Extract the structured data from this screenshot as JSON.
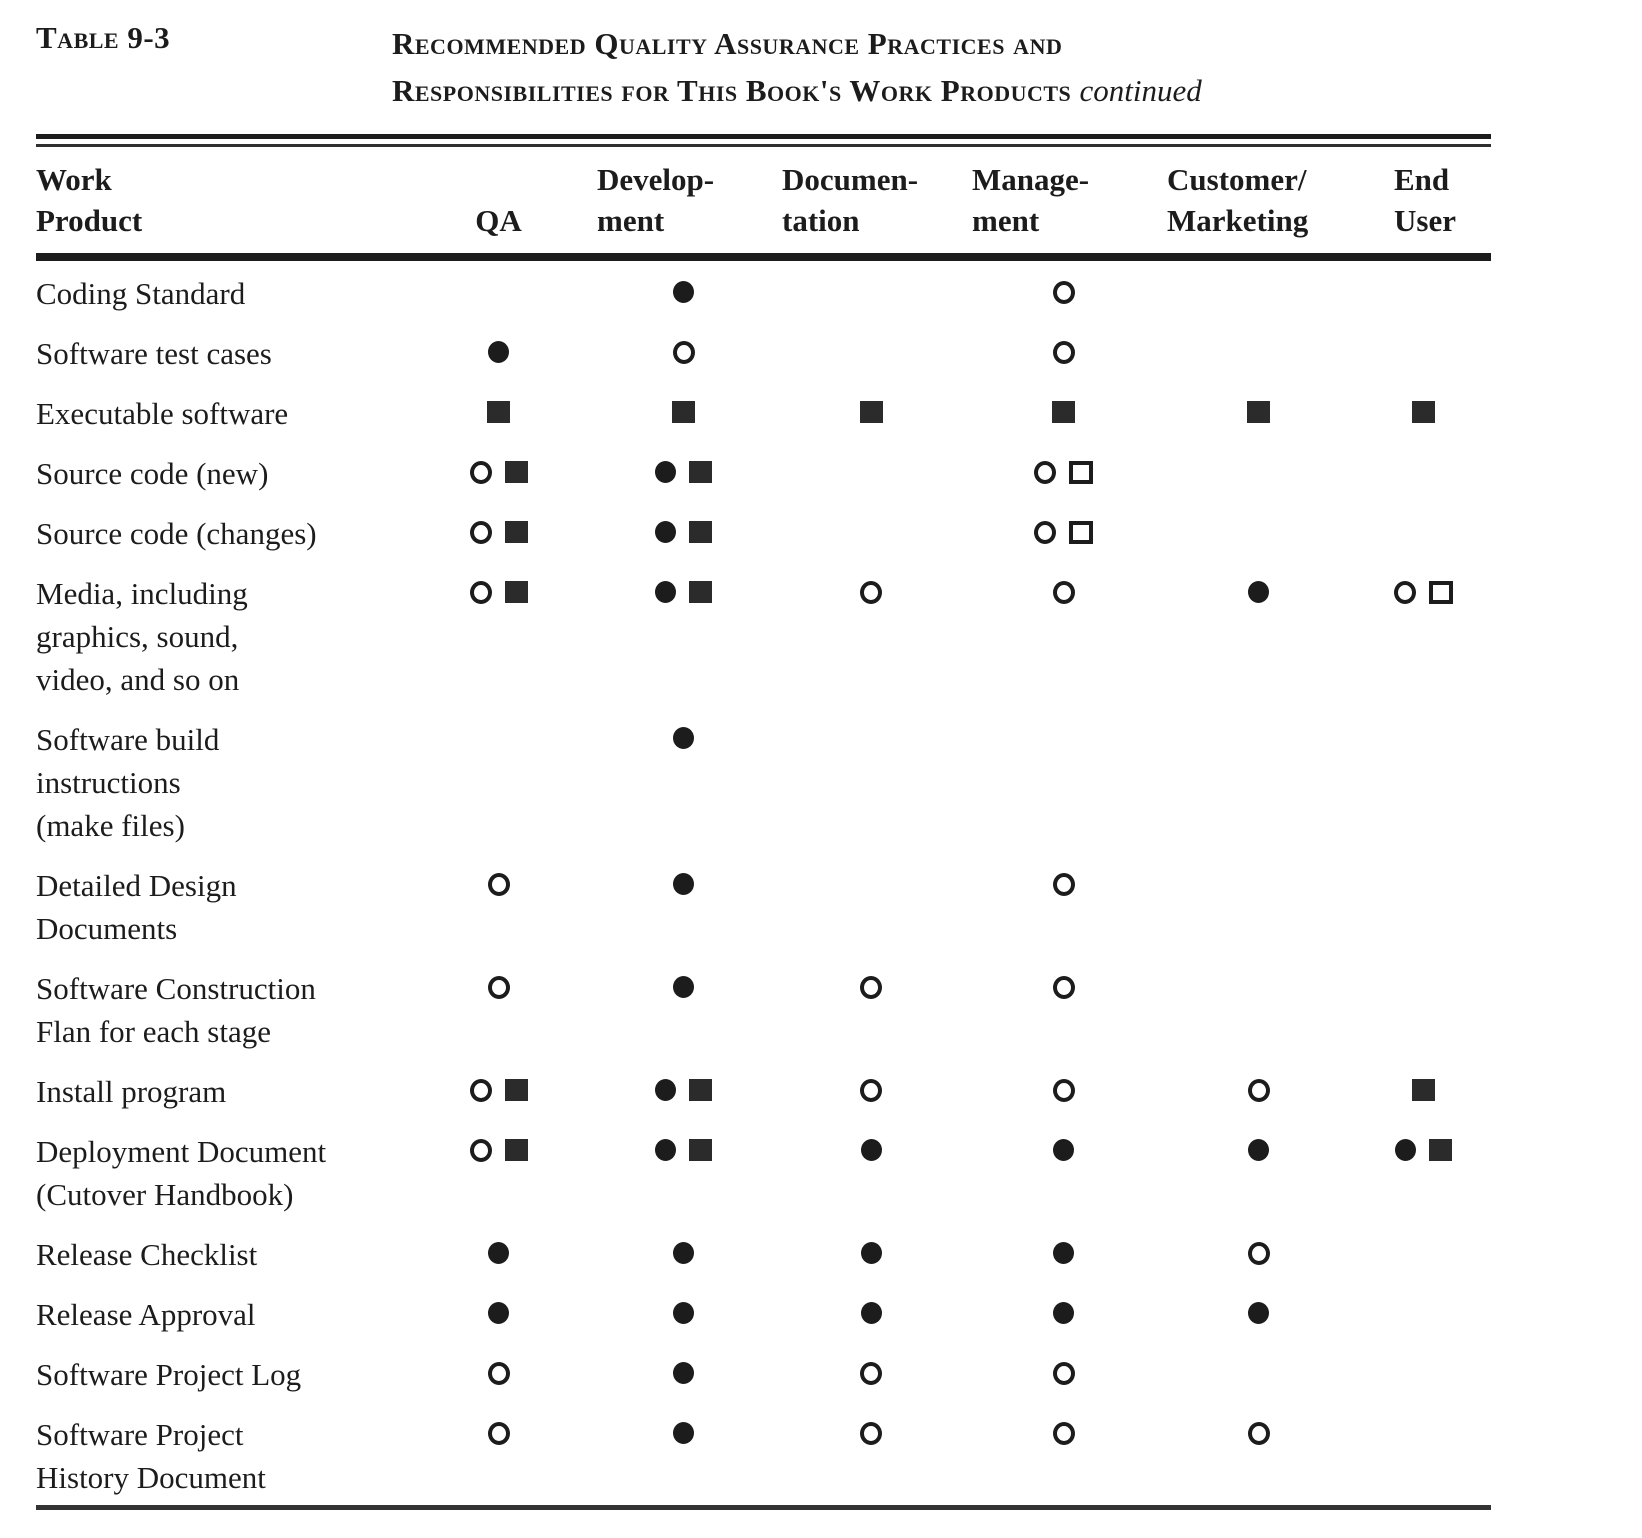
{
  "page": {
    "table_label": "Table 9-3",
    "title_line1": "Recommended Quality Assurance Practices and",
    "title_line2": "Responsibilities for This Book's Work Products",
    "title_continued": "continued"
  },
  "colors": {
    "ink": "#1c1c1c",
    "square_fill": "#2b2b2b"
  },
  "symbol_names": [
    "filled-circle",
    "open-circle",
    "filled-square",
    "open-square"
  ],
  "symbol_glyphs": {
    "filled-circle": "●",
    "open-circle": "○",
    "filled-square": "■",
    "open-square": "□"
  },
  "columns": [
    {
      "id": "work_product",
      "lines": [
        "Work",
        "Product"
      ]
    },
    {
      "id": "qa",
      "lines": [
        "QA"
      ]
    },
    {
      "id": "development",
      "lines": [
        "Develop-",
        "ment"
      ]
    },
    {
      "id": "documentation",
      "lines": [
        "Documen-",
        "tation"
      ]
    },
    {
      "id": "management",
      "lines": [
        "Manage-",
        "ment"
      ]
    },
    {
      "id": "customer_marketing",
      "lines": [
        "Customer/",
        "Marketing"
      ]
    },
    {
      "id": "end_user",
      "lines": [
        "End",
        "User"
      ]
    }
  ],
  "rows": [
    {
      "label_lines": [
        "Coding Standard"
      ],
      "cells": [
        [],
        [
          "filled-circle"
        ],
        [],
        [
          "open-circle"
        ],
        [],
        []
      ]
    },
    {
      "label_lines": [
        "Software test cases"
      ],
      "cells": [
        [
          "filled-circle"
        ],
        [
          "open-circle"
        ],
        [],
        [
          "open-circle"
        ],
        [],
        []
      ]
    },
    {
      "label_lines": [
        "Executable software"
      ],
      "cells": [
        [
          "filled-square"
        ],
        [
          "filled-square"
        ],
        [
          "filled-square"
        ],
        [
          "filled-square"
        ],
        [
          "filled-square"
        ],
        [
          "filled-square"
        ]
      ]
    },
    {
      "label_lines": [
        "Source code (new)"
      ],
      "cells": [
        [
          "open-circle",
          "filled-square"
        ],
        [
          "filled-circle",
          "filled-square"
        ],
        [],
        [
          "open-circle",
          "open-square"
        ],
        [],
        []
      ]
    },
    {
      "label_lines": [
        "Source code (changes)"
      ],
      "cells": [
        [
          "open-circle",
          "filled-square"
        ],
        [
          "filled-circle",
          "filled-square"
        ],
        [],
        [
          "open-circle",
          "open-square"
        ],
        [],
        []
      ]
    },
    {
      "label_lines": [
        "Media, including",
        "graphics, sound,",
        "video, and so on"
      ],
      "cells": [
        [
          "open-circle",
          "filled-square"
        ],
        [
          "filled-circle",
          "filled-square"
        ],
        [
          "open-circle"
        ],
        [
          "open-circle"
        ],
        [
          "filled-circle"
        ],
        [
          "open-circle",
          "open-square"
        ]
      ]
    },
    {
      "label_lines": [
        "Software build",
        "instructions",
        "(make files)"
      ],
      "cells": [
        [],
        [
          "filled-circle"
        ],
        [],
        [],
        [],
        []
      ]
    },
    {
      "label_lines": [
        "Detailed Design",
        "Documents"
      ],
      "cells": [
        [
          "open-circle"
        ],
        [
          "filled-circle"
        ],
        [],
        [
          "open-circle"
        ],
        [],
        []
      ]
    },
    {
      "label_lines": [
        "Software Construction",
        "Flan for each stage"
      ],
      "cells": [
        [
          "open-circle"
        ],
        [
          "filled-circle"
        ],
        [
          "open-circle"
        ],
        [
          "open-circle"
        ],
        [],
        []
      ]
    },
    {
      "label_lines": [
        "Install program"
      ],
      "cells": [
        [
          "open-circle",
          "filled-square"
        ],
        [
          "filled-circle",
          "filled-square"
        ],
        [
          "open-circle"
        ],
        [
          "open-circle"
        ],
        [
          "open-circle"
        ],
        [
          "filled-square"
        ]
      ]
    },
    {
      "label_lines": [
        "Deployment Document",
        "(Cutover Handbook)"
      ],
      "cells": [
        [
          "open-circle",
          "filled-square"
        ],
        [
          "filled-circle",
          "filled-square"
        ],
        [
          "filled-circle"
        ],
        [
          "filled-circle"
        ],
        [
          "filled-circle"
        ],
        [
          "filled-circle",
          "filled-square"
        ]
      ]
    },
    {
      "label_lines": [
        "Release Checklist"
      ],
      "cells": [
        [
          "filled-circle"
        ],
        [
          "filled-circle"
        ],
        [
          "filled-circle"
        ],
        [
          "filled-circle"
        ],
        [
          "open-circle"
        ],
        []
      ]
    },
    {
      "label_lines": [
        "Release Approval"
      ],
      "cells": [
        [
          "filled-circle"
        ],
        [
          "filled-circle"
        ],
        [
          "filled-circle"
        ],
        [
          "filled-circle"
        ],
        [
          "filled-circle"
        ],
        []
      ]
    },
    {
      "label_lines": [
        "Software Project Log"
      ],
      "cells": [
        [
          "open-circle"
        ],
        [
          "filled-circle"
        ],
        [
          "open-circle"
        ],
        [
          "open-circle"
        ],
        [],
        []
      ]
    },
    {
      "label_lines": [
        "Software Project",
        "History Document"
      ],
      "cells": [
        [
          "open-circle"
        ],
        [
          "filled-circle"
        ],
        [
          "open-circle"
        ],
        [
          "open-circle"
        ],
        [
          "open-circle"
        ],
        []
      ]
    }
  ]
}
